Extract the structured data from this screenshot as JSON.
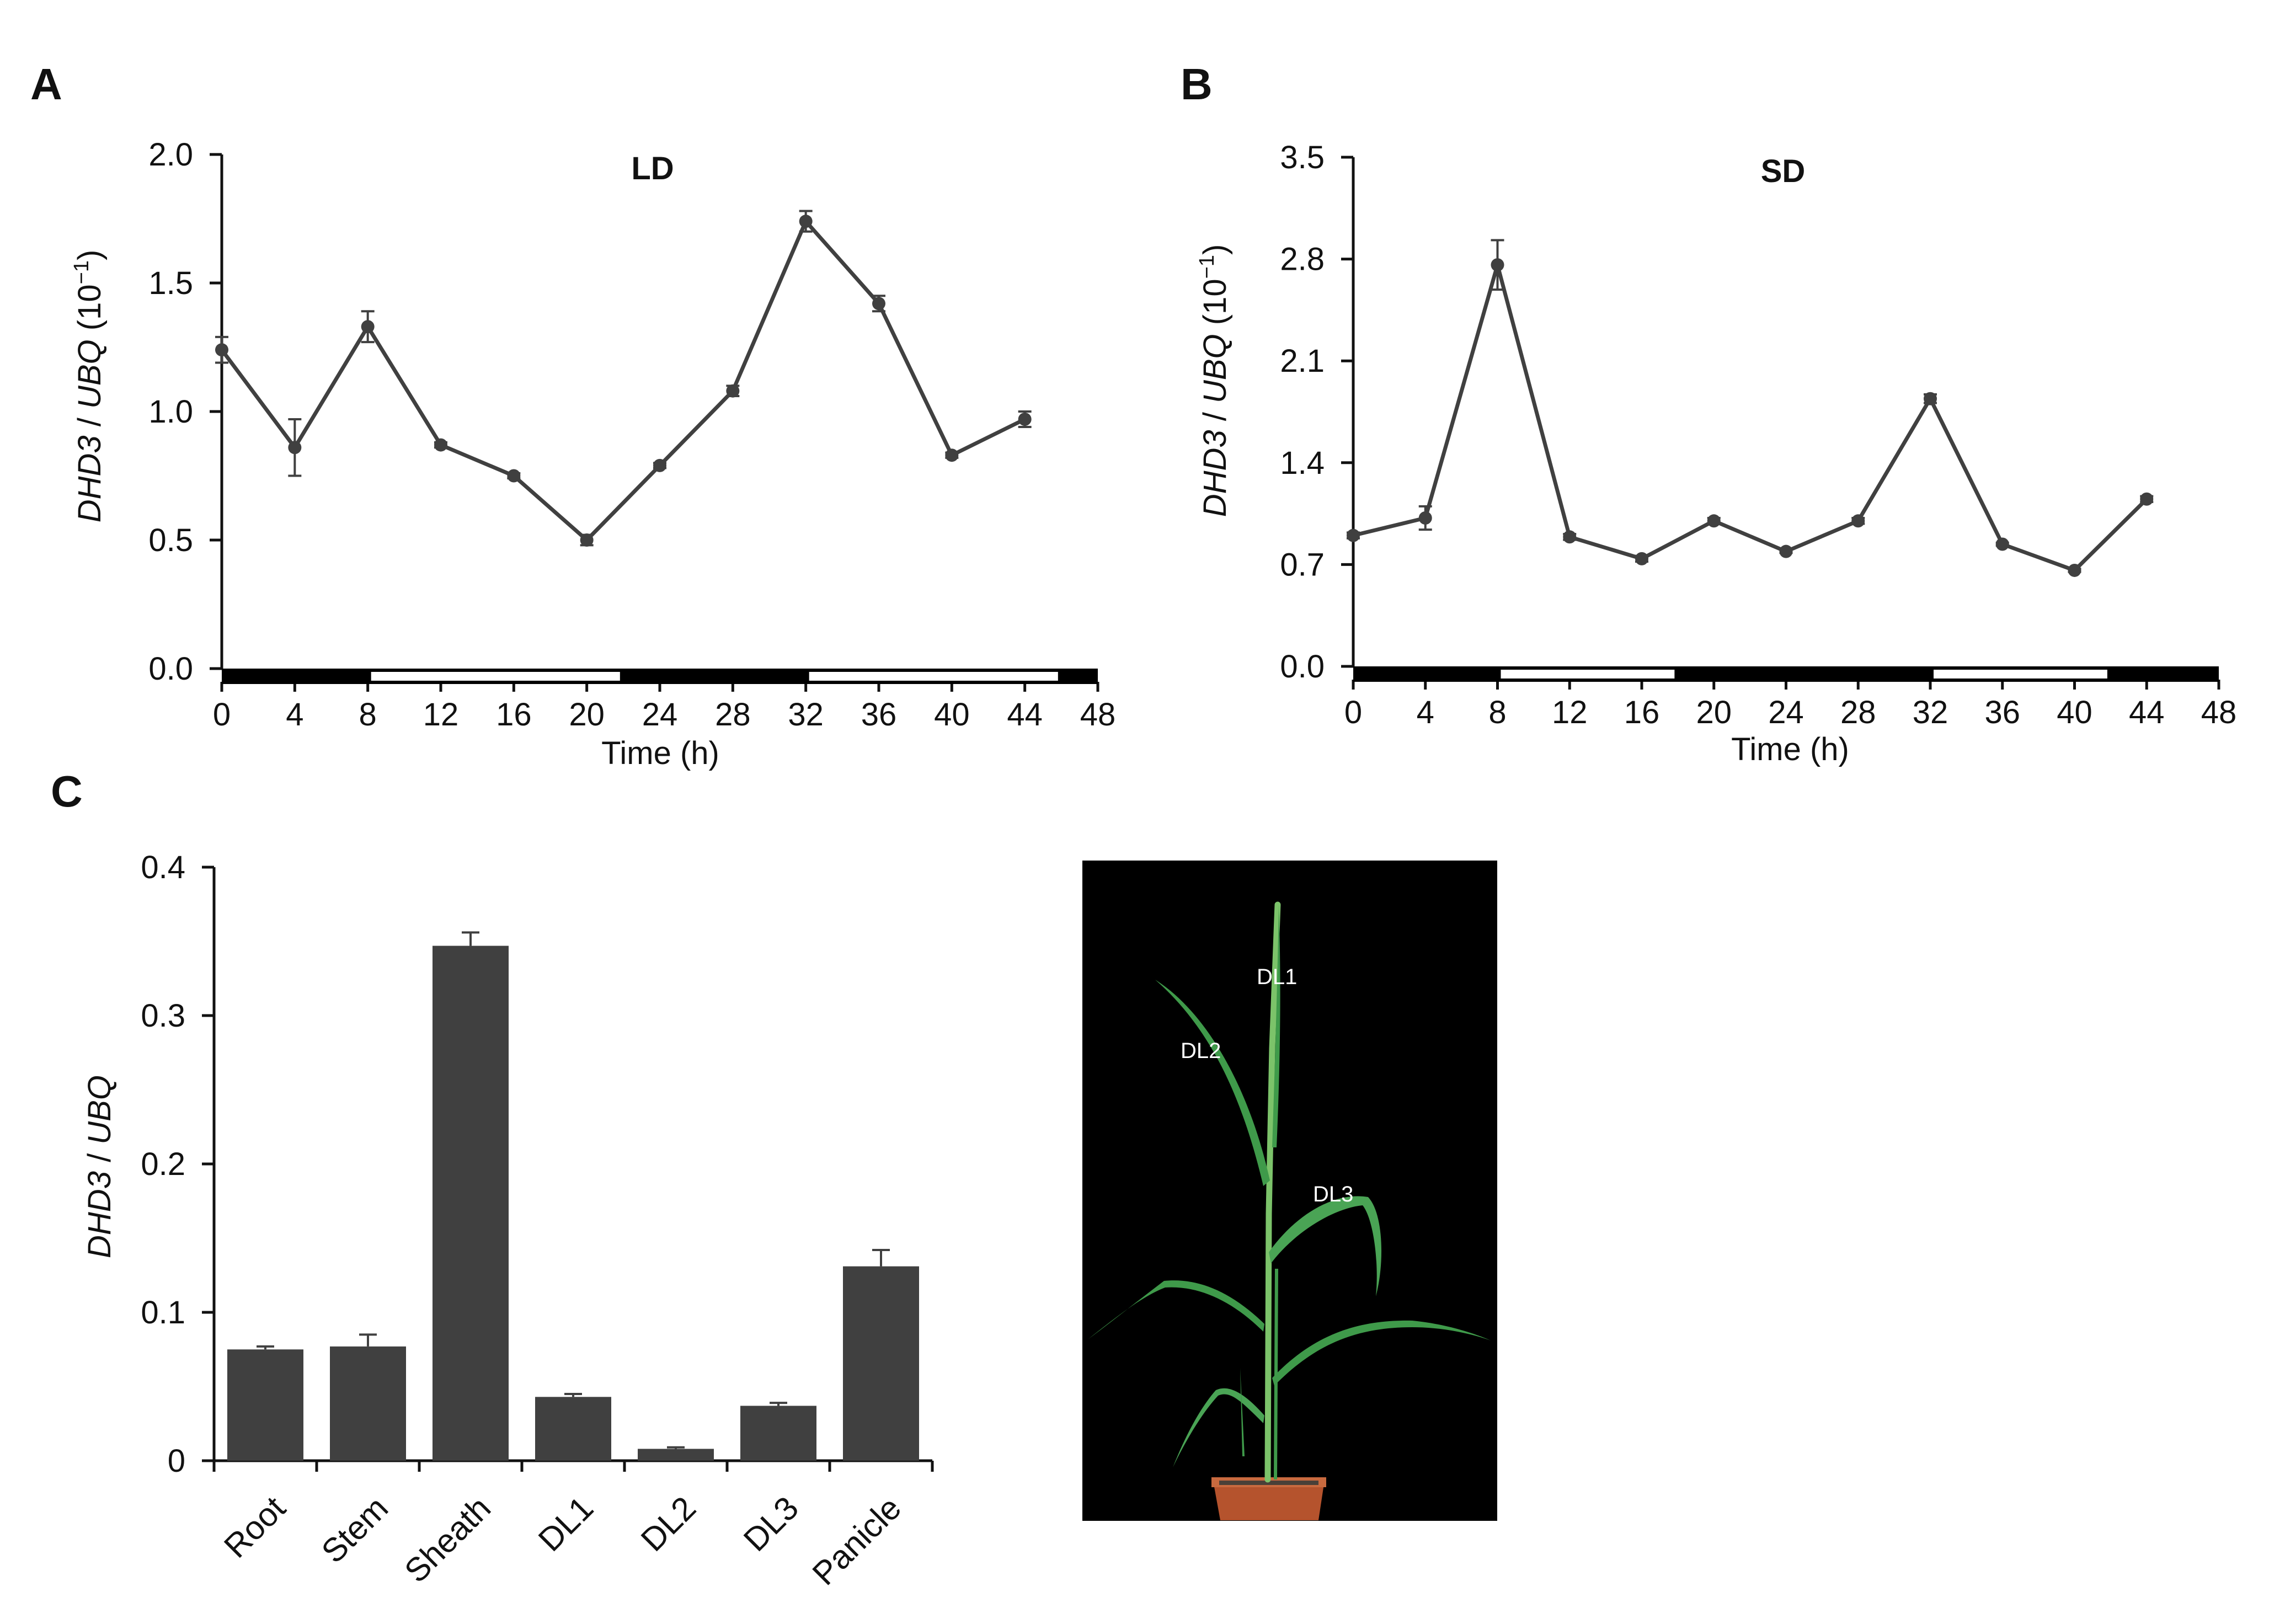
{
  "colors": {
    "ink": "#111111",
    "series": "#404040",
    "photo_bg": "#000000",
    "leaf": "#3f9a4a",
    "leaf_light": "#7cc36a",
    "pot": "#b5532d",
    "soil": "#4a4038"
  },
  "panels": {
    "A": {
      "letter": "A"
    },
    "B": {
      "letter": "B"
    },
    "C": {
      "letter": "C"
    }
  },
  "chart_data": [
    {
      "id": "A",
      "type": "line",
      "title": "LD",
      "xlabel": "Time (h)",
      "ylabel": {
        "gene": "DHD3",
        "sep": " / ",
        "ref": "UBQ",
        "unit_prefix": " (10",
        "unit_exp": "−1",
        "unit_suffix": ")"
      },
      "xlim": [
        0,
        48
      ],
      "xticks": [
        0,
        4,
        8,
        12,
        16,
        20,
        24,
        28,
        32,
        36,
        40,
        44,
        48
      ],
      "ylim": [
        0,
        2.0
      ],
      "yticks": [
        0,
        0.5,
        1.0,
        1.5,
        2.0
      ],
      "ytick_labels": [
        "0.0",
        "0.5",
        "1.0",
        "1.5",
        "2.0"
      ],
      "light_bar": [
        {
          "start": 0,
          "end": 8,
          "light": false
        },
        {
          "start": 8,
          "end": 22,
          "light": true
        },
        {
          "start": 22,
          "end": 32,
          "light": false
        },
        {
          "start": 32,
          "end": 46,
          "light": true
        },
        {
          "start": 46,
          "end": 48,
          "light": false
        }
      ],
      "series": [
        {
          "name": "DHD3",
          "x": [
            0,
            4,
            8,
            12,
            16,
            20,
            24,
            28,
            32,
            36,
            40,
            44
          ],
          "y": [
            1.24,
            0.86,
            1.33,
            0.87,
            0.75,
            0.5,
            0.79,
            1.08,
            1.74,
            1.42,
            0.83,
            0.97
          ],
          "err": [
            0.05,
            0.11,
            0.06,
            0.01,
            0.01,
            0.02,
            0.01,
            0.02,
            0.04,
            0.03,
            0.01,
            0.03
          ]
        }
      ]
    },
    {
      "id": "B",
      "type": "line",
      "title": "SD",
      "xlabel": "Time (h)",
      "ylabel": {
        "gene": "DHD3",
        "sep": " / ",
        "ref": "UBQ",
        "unit_prefix": " (10",
        "unit_exp": "−1",
        "unit_suffix": ")"
      },
      "xlim": [
        0,
        48
      ],
      "xticks": [
        0,
        4,
        8,
        12,
        16,
        20,
        24,
        28,
        32,
        36,
        40,
        44,
        48
      ],
      "ylim": [
        0,
        3.5
      ],
      "yticks": [
        0,
        0.7,
        1.4,
        2.1,
        2.8,
        3.5
      ],
      "ytick_labels": [
        "0.0",
        "0.7",
        "1.4",
        "2.1",
        "2.8",
        "3.5"
      ],
      "light_bar": [
        {
          "start": 0,
          "end": 8,
          "light": false
        },
        {
          "start": 8,
          "end": 18,
          "light": true
        },
        {
          "start": 18,
          "end": 32,
          "light": false
        },
        {
          "start": 32,
          "end": 42,
          "light": true
        },
        {
          "start": 42,
          "end": 48,
          "light": false
        }
      ],
      "series": [
        {
          "name": "DHD3",
          "x": [
            0,
            4,
            8,
            12,
            16,
            20,
            24,
            28,
            32,
            36,
            40,
            44
          ],
          "y": [
            0.9,
            1.02,
            2.76,
            0.89,
            0.74,
            1.0,
            0.79,
            1.0,
            1.84,
            0.84,
            0.66,
            1.15
          ],
          "err": [
            0.02,
            0.08,
            0.17,
            0.02,
            0.02,
            0.02,
            0.01,
            0.02,
            0.03,
            0.01,
            0.01,
            0.02
          ]
        }
      ]
    },
    {
      "id": "C",
      "type": "bar",
      "title": "",
      "xlabel": "",
      "ylabel": {
        "gene": "DHD3",
        "sep": " / ",
        "ref": "UBQ"
      },
      "categories": [
        "Root",
        "Stem",
        "Sheath",
        "DL1",
        "DL2",
        "DL3",
        "Panicle"
      ],
      "values": [
        0.075,
        0.077,
        0.347,
        0.043,
        0.008,
        0.037,
        0.131
      ],
      "err": [
        0.002,
        0.008,
        0.009,
        0.002,
        0.001,
        0.002,
        0.011
      ],
      "ylim": [
        0,
        0.4
      ],
      "yticks": [
        0,
        0.1,
        0.2,
        0.3,
        0.4
      ],
      "ytick_labels": [
        "0",
        "0.1",
        "0.2",
        "0.3",
        "0.4"
      ]
    }
  ],
  "photo": {
    "leaf_labels": [
      "DL1",
      "DL2",
      "DL3"
    ]
  }
}
